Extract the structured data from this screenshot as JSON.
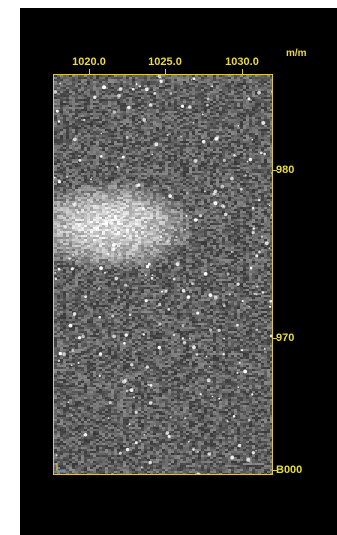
{
  "viewer": {
    "unit": "m/m",
    "x_ticks": [
      "1020.0",
      "1025.0",
      "1030.0"
    ],
    "y_ticks": [
      "980",
      "970",
      "B000"
    ],
    "origin_marker": "y-x-axis-icon",
    "colors": {
      "background": "#000000",
      "frame": "#d9c84a",
      "label": "#e8d84a"
    }
  }
}
